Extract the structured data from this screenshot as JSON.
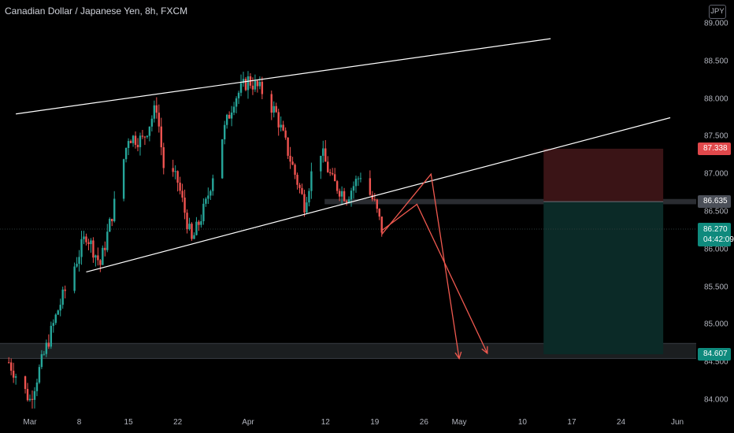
{
  "header": {
    "symbol_title": "Canadian Dollar / Japanese Yen, 8h, FXCM",
    "currency_badge": "JPY"
  },
  "y_axis": {
    "ticks": [
      {
        "value": 89.0,
        "label": "89.000"
      },
      {
        "value": 88.5,
        "label": "88.500"
      },
      {
        "value": 88.0,
        "label": "88.000"
      },
      {
        "value": 87.5,
        "label": "87.500"
      },
      {
        "value": 87.0,
        "label": "87.000"
      },
      {
        "value": 86.5,
        "label": "86.500"
      },
      {
        "value": 86.0,
        "label": "86.000"
      },
      {
        "value": 85.5,
        "label": "85.500"
      },
      {
        "value": 85.0,
        "label": "85.000"
      },
      {
        "value": 84.5,
        "label": "84.500"
      },
      {
        "value": 84.0,
        "label": "84.000"
      }
    ]
  },
  "x_axis": {
    "ticks": [
      "Mar",
      "8",
      "15",
      "22",
      "Apr",
      "12",
      "19",
      "26",
      "May",
      "10",
      "17",
      "24",
      "Jun"
    ]
  },
  "price_tags": {
    "stop_loss": "87.338",
    "entry": "86.635",
    "last_price": "86.270",
    "countdown": "04:42:09",
    "take_profit": "84.607"
  },
  "colors": {
    "background": "#000000",
    "bull": "#26a69a",
    "bear": "#ef5350",
    "stop_zone": "#3a1416",
    "target_zone": "#0b2a27",
    "drawing": "#ffffff",
    "projection": "#f0594f"
  },
  "chart_data": {
    "type": "candlestick",
    "symbol": "CADJPY",
    "timeframe": "8h",
    "ylim": [
      83.8,
      89.1
    ],
    "x_range": [
      "2021-03-01",
      "2021-06-01"
    ],
    "price_path": [
      {
        "date": "2021-02-26",
        "close": 84.5
      },
      {
        "date": "2021-03-01",
        "close": 84.0
      },
      {
        "date": "2021-03-03",
        "close": 84.6
      },
      {
        "date": "2021-03-05",
        "close": 85.2
      },
      {
        "date": "2021-03-07",
        "close": 85.7
      },
      {
        "date": "2021-03-09",
        "close": 86.2
      },
      {
        "date": "2021-03-11",
        "close": 85.8
      },
      {
        "date": "2021-03-13",
        "close": 86.6
      },
      {
        "date": "2021-03-15",
        "close": 87.5
      },
      {
        "date": "2021-03-17",
        "close": 87.45
      },
      {
        "date": "2021-03-19",
        "close": 87.9
      },
      {
        "date": "2021-03-20",
        "close": 87.1
      },
      {
        "date": "2021-03-22",
        "close": 86.9
      },
      {
        "date": "2021-03-24",
        "close": 86.1
      },
      {
        "date": "2021-03-26",
        "close": 86.6
      },
      {
        "date": "2021-03-28",
        "close": 87.4
      },
      {
        "date": "2021-03-30",
        "close": 88.0
      },
      {
        "date": "2021-04-01",
        "close": 88.25
      },
      {
        "date": "2021-04-03",
        "close": 88.1
      },
      {
        "date": "2021-04-05",
        "close": 87.8
      },
      {
        "date": "2021-04-07",
        "close": 87.2
      },
      {
        "date": "2021-04-09",
        "close": 86.6
      },
      {
        "date": "2021-04-11",
        "close": 87.4
      },
      {
        "date": "2021-04-13",
        "close": 86.9
      },
      {
        "date": "2021-04-15",
        "close": 86.7
      },
      {
        "date": "2021-04-17",
        "close": 87.0
      },
      {
        "date": "2021-04-19",
        "close": 86.6
      },
      {
        "date": "2021-04-20",
        "close": 86.27
      }
    ],
    "trendlines": [
      {
        "name": "upper-channel-line",
        "from": {
          "date": "2021-02-27",
          "price": 87.8
        },
        "to": {
          "date": "2021-05-14",
          "price": 88.8
        }
      },
      {
        "name": "lower-channel-line",
        "from": {
          "date": "2021-03-09",
          "price": 85.7
        },
        "to": {
          "date": "2021-05-31",
          "price": 87.75
        }
      }
    ],
    "projection_paths": [
      [
        {
          "date": "2021-04-20",
          "price": 86.2
        },
        {
          "date": "2021-04-27",
          "price": 87.0
        },
        {
          "date": "2021-05-01",
          "price": 84.55
        }
      ],
      [
        {
          "date": "2021-04-20",
          "price": 86.25
        },
        {
          "date": "2021-04-25",
          "price": 86.6
        },
        {
          "date": "2021-05-05",
          "price": 84.62
        }
      ]
    ],
    "position": {
      "type": "short",
      "entry": 86.635,
      "stop_loss": 87.338,
      "take_profit": 84.607,
      "start_date": "2021-05-13",
      "end_date": "2021-05-30"
    },
    "support_zone": [
      84.55,
      84.75
    ],
    "entry_zone": [
      86.6,
      86.67
    ],
    "last_price": 86.27
  }
}
